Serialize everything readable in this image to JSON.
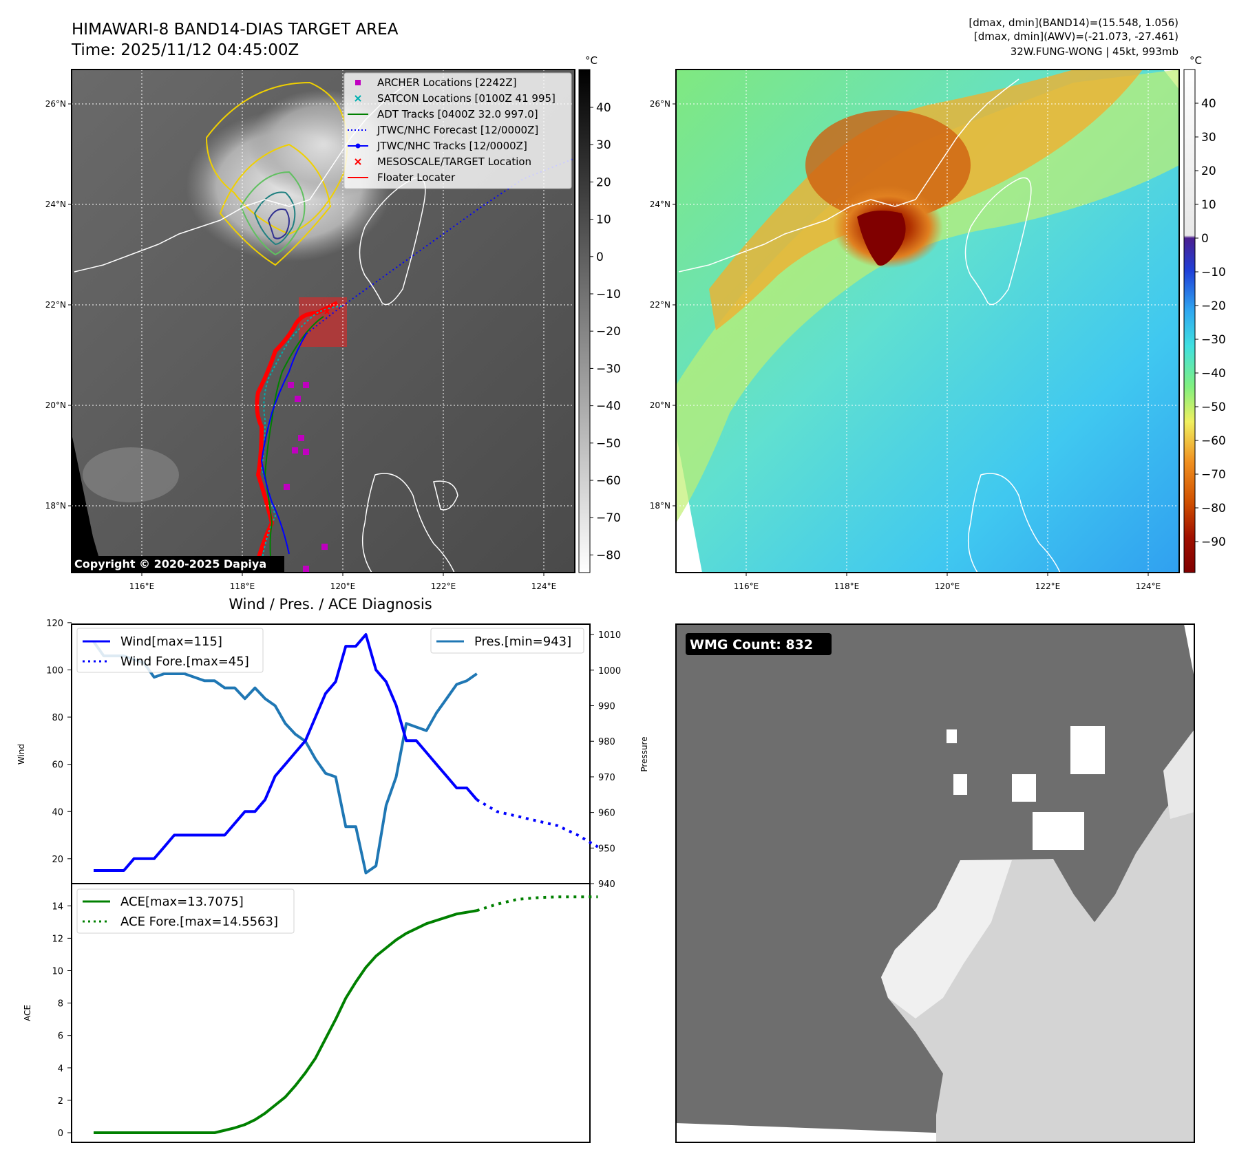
{
  "header": {
    "title_line1": "HIMAWARI-8 BAND14-DIAS TARGET AREA",
    "title_line2": "Time: 2025/11/12 04:45:00Z",
    "info_line1": "[dmax, dmin](BAND14)=(15.548, 1.056)",
    "info_line2": "[dmax, dmin](AWV)=(-21.073, -27.461)",
    "info_line3": "32W.FUNG-WONG | 45kt, 993mb"
  },
  "map": {
    "lon_ticks": [
      "116°E",
      "118°E",
      "120°E",
      "122°E",
      "124°E"
    ],
    "lat_ticks": [
      "26°N",
      "24°N",
      "22°N",
      "20°N",
      "18°N"
    ],
    "copyright": "Copyright © 2020-2025 Dapiya",
    "colorbar_unit": "°C",
    "ir_colorbar_ticks": [
      "40",
      "30",
      "20",
      "10",
      "0",
      "−10",
      "−20",
      "−30",
      "−40",
      "−50",
      "−60",
      "−70",
      "−80"
    ],
    "enh_colorbar_ticks": [
      "40",
      "30",
      "20",
      "10",
      "0",
      "−10",
      "−20",
      "−30",
      "−40",
      "−50",
      "−60",
      "−70",
      "−80",
      "−90"
    ],
    "legend": [
      {
        "label": "ARCHER Locations [2242Z]",
        "color": "#c000c0",
        "marker": "square"
      },
      {
        "label": "SATCON Locations [0100Z 41 995]",
        "color": "#00b0b0",
        "marker": "x"
      },
      {
        "label": "ADT Tracks [0400Z 32.0 997.0]",
        "color": "#008000",
        "marker": "line"
      },
      {
        "label": "JTWC/NHC Forecast [12/0000Z]",
        "color": "#0000ff",
        "marker": "dotted"
      },
      {
        "label": "JTWC/NHC Tracks [12/0000Z]",
        "color": "#0000ff",
        "marker": "line-dot"
      },
      {
        "label": "MESOSCALE/TARGET Location",
        "color": "#ff0000",
        "marker": "x"
      },
      {
        "label": "Floater Locater",
        "color": "#ff0000",
        "marker": "line"
      }
    ]
  },
  "diag": {
    "title": "Wind / Pres. / ACE Diagnosis",
    "wind_ylabel": "Wind",
    "pres_ylabel": "Pressure",
    "ace_ylabel": "ACE",
    "wind_ticks": [
      "120",
      "100",
      "80",
      "60",
      "40",
      "20"
    ],
    "pres_ticks": [
      "1010",
      "1000",
      "990",
      "980",
      "970",
      "960",
      "950",
      "940"
    ],
    "ace_ticks": [
      "14",
      "12",
      "10",
      "8",
      "6",
      "4",
      "2",
      "0"
    ],
    "legend_wind": "Wind[max=115]",
    "legend_wind_fore": "Wind Fore.[max=45]",
    "legend_pres": "Pres.[min=943]",
    "legend_ace": "ACE[max=13.7075]",
    "legend_ace_fore": "ACE Fore.[max=14.5563]"
  },
  "wmg": {
    "label": "WMG Count: 832"
  },
  "chart_data": [
    {
      "type": "line",
      "title": "Wind / Pres. / ACE Diagnosis",
      "ylabel": "Wind",
      "ylim": [
        13,
        120
      ],
      "series": [
        {
          "name": "Wind[max=115]",
          "x": [
            0,
            1,
            2,
            3,
            4,
            5,
            6,
            7,
            8,
            9,
            10,
            11,
            12,
            13,
            14,
            15,
            16,
            17,
            18,
            19,
            20,
            21,
            22,
            23,
            24,
            25,
            26,
            27,
            28,
            29,
            30,
            31,
            32,
            33,
            34,
            35,
            36,
            37,
            38,
            39,
            40
          ],
          "values": [
            15,
            15,
            15,
            15,
            20,
            20,
            20,
            25,
            30,
            30,
            30,
            30,
            30,
            30,
            35,
            40,
            40,
            45,
            55,
            60,
            65,
            70,
            80,
            90,
            95,
            110,
            110,
            115,
            100,
            95,
            85,
            70,
            70,
            65,
            60,
            55,
            50,
            50,
            45,
            null,
            null
          ]
        },
        {
          "name": "Wind Fore.[max=45]",
          "x": [
            38,
            40,
            42,
            44,
            46,
            48,
            50
          ],
          "values": [
            45,
            40,
            38,
            36,
            34,
            30,
            25
          ]
        }
      ]
    },
    {
      "type": "line",
      "ylabel": "Pressure",
      "ylim": [
        940,
        1012
      ],
      "series": [
        {
          "name": "Pres.[min=943]",
          "x": [
            0,
            1,
            2,
            3,
            4,
            5,
            6,
            7,
            8,
            9,
            10,
            11,
            12,
            13,
            14,
            15,
            16,
            17,
            18,
            19,
            20,
            21,
            22,
            23,
            24,
            25,
            26,
            27,
            28,
            29,
            30,
            31,
            32,
            33,
            34,
            35,
            36,
            37,
            38,
            39,
            40
          ],
          "values": [
            1008,
            1004,
            1004,
            1004,
            1003,
            1002,
            998,
            999,
            999,
            999,
            998,
            997,
            997,
            995,
            995,
            992,
            995,
            992,
            990,
            985,
            982,
            980,
            975,
            971,
            970,
            956,
            956,
            943,
            945,
            962,
            970,
            985,
            984,
            983,
            988,
            992,
            996,
            997,
            999,
            null,
            null
          ]
        }
      ]
    },
    {
      "type": "line",
      "ylabel": "ACE",
      "ylim": [
        -0.5,
        15
      ],
      "series": [
        {
          "name": "ACE[max=13.7075]",
          "x": [
            0,
            3,
            6,
            9,
            12,
            13,
            14,
            15,
            16,
            17,
            18,
            19,
            20,
            21,
            22,
            23,
            24,
            25,
            26,
            27,
            28,
            29,
            30,
            31,
            32,
            33,
            34,
            35,
            36,
            37,
            38
          ],
          "values": [
            0,
            0,
            0,
            0,
            0,
            0.15,
            0.3,
            0.5,
            0.8,
            1.2,
            1.7,
            2.2,
            2.9,
            3.7,
            4.6,
            5.8,
            7,
            8.3,
            9.3,
            10.2,
            10.9,
            11.4,
            11.9,
            12.3,
            12.6,
            12.9,
            13.1,
            13.3,
            13.5,
            13.6,
            13.7075
          ]
        },
        {
          "name": "ACE Fore.[max=14.5563]",
          "x": [
            38,
            40,
            42,
            44,
            46,
            48,
            50
          ],
          "values": [
            13.7075,
            14.1,
            14.4,
            14.5,
            14.5563,
            14.5563,
            14.5563
          ]
        }
      ]
    }
  ]
}
